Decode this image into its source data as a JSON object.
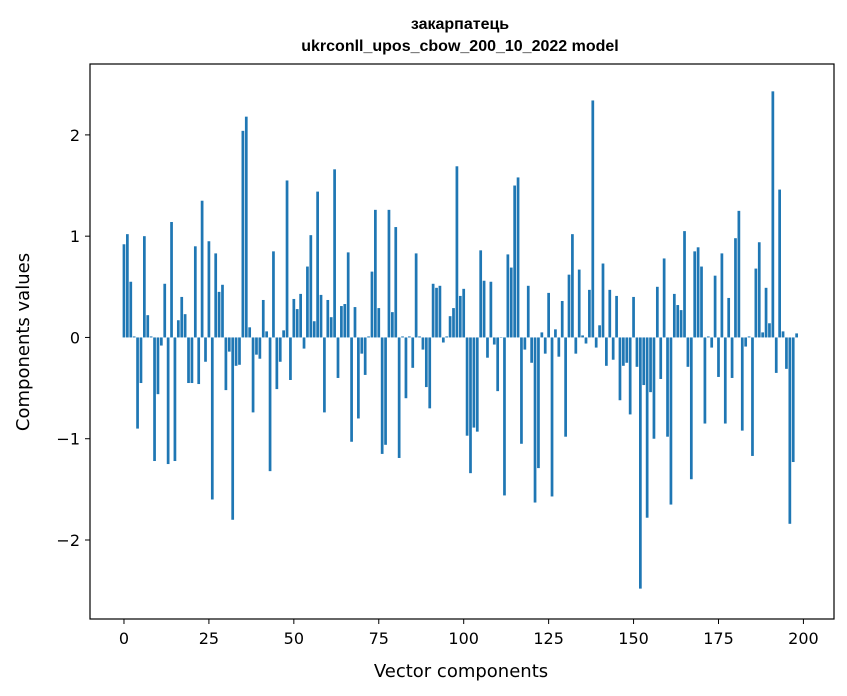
{
  "chart_data": {
    "type": "bar",
    "title": [
      "закарпатець",
      "ukrconll_upos_cbow_200_10_2022 model"
    ],
    "xlabel": "Vector components",
    "ylabel": "Components values",
    "xlim": [
      -10,
      209
    ],
    "ylim": [
      -2.78,
      2.7
    ],
    "xticks": [
      0,
      25,
      50,
      75,
      100,
      125,
      150,
      175,
      200
    ],
    "xtick_labels": [
      "0",
      "25",
      "50",
      "75",
      "100",
      "125",
      "150",
      "175",
      "200"
    ],
    "yticks": [
      -2,
      -1,
      0,
      1,
      2
    ],
    "ytick_labels": [
      "−2",
      "−1",
      "0",
      "1",
      "2"
    ],
    "bar_color": "#1f77b4",
    "values": [
      0.92,
      1.02,
      0.55,
      0.01,
      -0.9,
      -0.45,
      1.0,
      0.22,
      0.01,
      -1.22,
      -0.56,
      -0.08,
      0.53,
      -1.25,
      1.14,
      -1.22,
      0.17,
      0.4,
      0.23,
      -0.45,
      -0.45,
      0.9,
      -0.46,
      1.35,
      -0.24,
      0.95,
      -1.6,
      0.83,
      0.45,
      0.52,
      -0.52,
      -0.14,
      -1.8,
      -0.28,
      -0.27,
      2.04,
      2.18,
      0.1,
      -0.74,
      -0.17,
      -0.21,
      0.37,
      0.06,
      -1.32,
      0.85,
      -0.51,
      -0.24,
      0.07,
      1.55,
      -0.42,
      0.38,
      0.28,
      0.43,
      -0.11,
      0.7,
      1.01,
      0.16,
      1.44,
      0.42,
      -0.74,
      0.37,
      0.2,
      1.66,
      -0.4,
      0.31,
      0.33,
      0.84,
      -1.03,
      0.3,
      -0.8,
      -0.16,
      -0.37,
      0.01,
      0.65,
      1.26,
      0.29,
      -1.15,
      -1.06,
      1.26,
      0.25,
      1.09,
      -1.19,
      0.01,
      -0.6,
      0.01,
      -0.3,
      0.83,
      0.01,
      -0.12,
      -0.49,
      -0.7,
      0.53,
      0.49,
      0.51,
      -0.05,
      0.01,
      0.21,
      0.29,
      1.69,
      0.41,
      0.48,
      -0.97,
      -1.34,
      -0.89,
      -0.93,
      0.86,
      0.56,
      -0.2,
      0.55,
      -0.07,
      -0.53,
      0.0,
      -1.56,
      0.82,
      0.69,
      1.5,
      1.58,
      -1.05,
      -0.12,
      0.51,
      -0.25,
      -1.63,
      -1.29,
      0.05,
      -0.16,
      0.44,
      -1.57,
      0.08,
      -0.19,
      0.36,
      -0.98,
      0.62,
      1.02,
      -0.16,
      0.67,
      0.02,
      -0.06,
      0.47,
      2.34,
      -0.1,
      0.12,
      0.73,
      -0.28,
      0.47,
      -0.22,
      0.41,
      -0.62,
      -0.28,
      -0.25,
      -0.76,
      0.4,
      -0.29,
      -2.48,
      -0.47,
      -1.78,
      -0.54,
      -1.0,
      0.5,
      -0.41,
      0.78,
      -0.98,
      -1.65,
      0.43,
      0.32,
      0.27,
      1.05,
      -0.29,
      -1.4,
      0.85,
      0.89,
      0.7,
      -0.85,
      0.01,
      -0.1,
      0.61,
      -0.39,
      0.83,
      -0.85,
      0.39,
      -0.4,
      0.98,
      1.25,
      -0.92,
      -0.09,
      0.01,
      -1.17,
      0.68,
      0.94,
      0.05,
      0.49,
      0.14,
      2.43,
      -0.35,
      1.46,
      0.06,
      -0.31,
      -1.84,
      -1.23,
      0.04
    ]
  }
}
